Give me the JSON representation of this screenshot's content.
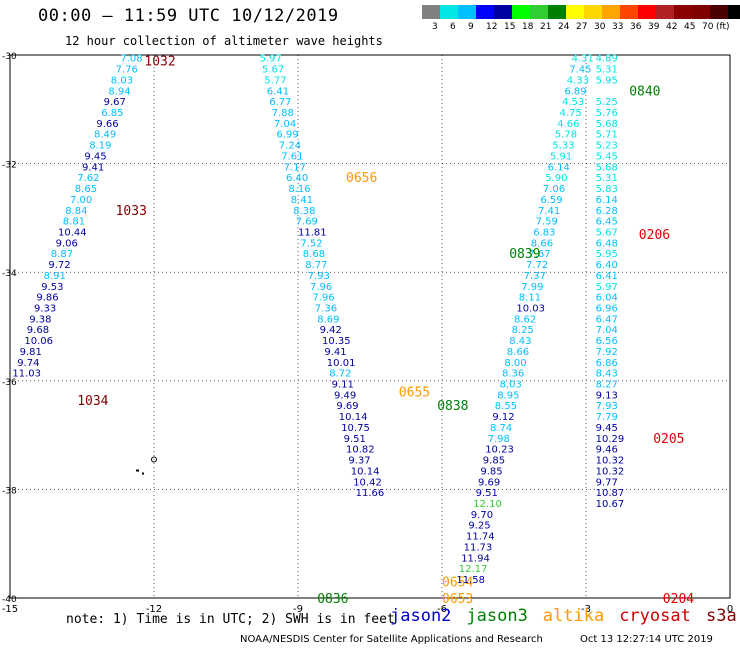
{
  "header": {
    "title": "00:00 – 11:59 UTC 10/12/2019",
    "subtitle": "12 hour collection of altimeter wave heights"
  },
  "colorbar": {
    "colors": [
      "#808080",
      "#00e5e5",
      "#00bfff",
      "#0000ff",
      "#0000a0",
      "#00ff00",
      "#32cd32",
      "#008000",
      "#ffff00",
      "#ffd700",
      "#ffa500",
      "#ff4500",
      "#ff0000",
      "#b22222",
      "#8b0000",
      "#800000",
      "#4b0000",
      "#000000"
    ],
    "labels": [
      "3",
      "6",
      "9",
      "12",
      "15",
      "18",
      "21",
      "24",
      "27",
      "30",
      "33",
      "36",
      "39",
      "42",
      "45",
      "70",
      "(ft)"
    ]
  },
  "footer": {
    "note": "note: 1) Time is in UTC; 2) SWH is in feet",
    "sats": [
      {
        "name": "jason2",
        "color": "#0000cc"
      },
      {
        "name": "jason3",
        "color": "#008000"
      },
      {
        "name": "altika",
        "color": "#ff9900"
      },
      {
        "name": "cryosat",
        "color": "#cc0000"
      },
      {
        "name": "s3a",
        "color": "#800000"
      }
    ],
    "credit": "NOAA/NESDIS Center for Satellite Applications and Research",
    "timestamp": "Oct 13 12:27:14 UTC 2019"
  },
  "chart_data": {
    "type": "scatter",
    "xlim": [
      -15,
      0
    ],
    "ylim": [
      -40,
      -30
    ],
    "xticks": [
      "-15",
      "-12",
      "-9",
      "-6",
      "-3",
      "0"
    ],
    "yticks": [
      "-30",
      "-32",
      "-34",
      "-36",
      "-38",
      "-40"
    ],
    "grid": true,
    "tracks": [
      {
        "satellite": "s3a",
        "time_labels": [
          {
            "text": "1032",
            "lon": -12.2,
            "lat": -30.1
          },
          {
            "text": "1033",
            "lon": -12.8,
            "lat": -32.85
          },
          {
            "text": "1034",
            "lon": -13.6,
            "lat": -36.35
          }
        ],
        "points": [
          [
            "7.08",
            -12.7,
            -30.05
          ],
          [
            "7.76",
            -12.8,
            -30.25
          ],
          [
            "8.03",
            -12.9,
            -30.45
          ],
          [
            "8.94",
            -12.95,
            -30.65
          ],
          [
            "9.67",
            -13.05,
            -30.85
          ],
          [
            "6.85",
            -13.1,
            -31.05
          ],
          [
            "9.66",
            -13.2,
            -31.25
          ],
          [
            "8.49",
            -13.25,
            -31.45
          ],
          [
            "8.19",
            -13.35,
            -31.65
          ],
          [
            "9.45",
            -13.45,
            -31.85
          ],
          [
            "9.41",
            -13.5,
            -32.05
          ],
          [
            "7.62",
            -13.6,
            -32.25
          ],
          [
            "8.65",
            -13.65,
            -32.45
          ],
          [
            "7.00",
            -13.75,
            -32.65
          ],
          [
            "8.84",
            -13.85,
            -32.85
          ],
          [
            "8.81",
            -13.9,
            -33.05
          ],
          [
            "10.44",
            -14.0,
            -33.25
          ],
          [
            "9.06",
            -14.05,
            -33.45
          ],
          [
            "8.87",
            -14.15,
            -33.65
          ],
          [
            "9.72",
            -14.2,
            -33.85
          ],
          [
            "8.91",
            -14.3,
            -34.05
          ],
          [
            "9.53",
            -14.35,
            -34.25
          ],
          [
            "9.86",
            -14.45,
            -34.45
          ],
          [
            "9.33",
            -14.5,
            -34.65
          ],
          [
            "9.38",
            -14.6,
            -34.85
          ],
          [
            "9.68",
            -14.65,
            -35.05
          ],
          [
            "10.06",
            -14.7,
            -35.25
          ],
          [
            "9.81",
            -14.8,
            -35.45
          ],
          [
            "9.74",
            -14.85,
            -35.65
          ],
          [
            "11.03",
            -14.95,
            -35.85
          ]
        ]
      },
      {
        "satellite": "altika",
        "time_labels": [
          {
            "text": "0656",
            "lon": -8.0,
            "lat": -32.25
          },
          {
            "text": "0655",
            "lon": -6.9,
            "lat": -36.2
          },
          {
            "text": "0654",
            "lon": -6.0,
            "lat": -39.7
          },
          {
            "text": "0653",
            "lon": -6.0,
            "lat": -40.0
          }
        ],
        "points": [
          [
            "5.97",
            -9.8,
            -30.05
          ],
          [
            "5.67",
            -9.75,
            -30.25
          ],
          [
            "5.77",
            -9.7,
            -30.45
          ],
          [
            "6.41",
            -9.65,
            -30.65
          ],
          [
            "6.77",
            -9.6,
            -30.85
          ],
          [
            "7.88",
            -9.55,
            -31.05
          ],
          [
            "7.04",
            -9.5,
            -31.25
          ],
          [
            "6.99",
            -9.45,
            -31.45
          ],
          [
            "7.24",
            -9.4,
            -31.65
          ],
          [
            "7.61",
            -9.35,
            -31.85
          ],
          [
            "7.17",
            -9.3,
            -32.05
          ],
          [
            "6.40",
            -9.25,
            -32.25
          ],
          [
            "8.16",
            -9.2,
            -32.45
          ],
          [
            "8.41",
            -9.15,
            -32.65
          ],
          [
            "8.38",
            -9.1,
            -32.85
          ],
          [
            "7.69",
            -9.05,
            -33.05
          ],
          [
            "11.81",
            -9.0,
            -33.25
          ],
          [
            "7.52",
            -8.95,
            -33.45
          ],
          [
            "8.68",
            -8.9,
            -33.65
          ],
          [
            "8.77",
            -8.85,
            -33.85
          ],
          [
            "7.93",
            -8.8,
            -34.05
          ],
          [
            "7.96",
            -8.75,
            -34.25
          ],
          [
            "7.96",
            -8.7,
            -34.45
          ],
          [
            "7.36",
            -8.65,
            -34.65
          ],
          [
            "8.69",
            -8.6,
            -34.85
          ],
          [
            "9.42",
            -8.55,
            -35.05
          ],
          [
            "10.35",
            -8.5,
            -35.25
          ],
          [
            "9.41",
            -8.45,
            -35.45
          ],
          [
            "10.01",
            -8.4,
            -35.65
          ],
          [
            "8.72",
            -8.35,
            -35.85
          ],
          [
            "9.11",
            -8.3,
            -36.05
          ],
          [
            "9.49",
            -8.25,
            -36.25
          ],
          [
            "9.69",
            -8.2,
            -36.45
          ],
          [
            "10.14",
            -8.15,
            -36.65
          ],
          [
            "10.75",
            -8.1,
            -36.85
          ],
          [
            "9.51",
            -8.05,
            -37.05
          ],
          [
            "10.82",
            -8.0,
            -37.25
          ],
          [
            "9.37",
            -7.95,
            -37.45
          ],
          [
            "10.14",
            -7.9,
            -37.65
          ],
          [
            "10.42",
            -7.85,
            -37.85
          ],
          [
            "11.66",
            -7.8,
            -38.05
          ]
        ]
      },
      {
        "satellite": "jason3",
        "time_labels": [
          {
            "text": "0840",
            "lon": -2.1,
            "lat": -30.65
          },
          {
            "text": "0839",
            "lon": -4.6,
            "lat": -33.65
          },
          {
            "text": "0838",
            "lon": -6.1,
            "lat": -36.45
          },
          {
            "text": "0836",
            "lon": -8.6,
            "lat": -40.0
          }
        ],
        "points": [
          [
            "4.31",
            -3.3,
            -30.05
          ],
          [
            "7.45",
            -3.35,
            -30.25
          ],
          [
            "4.33",
            -3.4,
            -30.45
          ],
          [
            "6.89",
            -3.45,
            -30.65
          ],
          [
            "4.53",
            -3.5,
            -30.85
          ],
          [
            "4.75",
            -3.55,
            -31.05
          ],
          [
            "4.66",
            -3.6,
            -31.25
          ],
          [
            "5.78",
            -3.65,
            -31.45
          ],
          [
            "5.33",
            -3.7,
            -31.65
          ],
          [
            "5.91",
            -3.75,
            -31.85
          ],
          [
            "6.14",
            -3.8,
            -32.05
          ],
          [
            "5.90",
            -3.85,
            -32.25
          ],
          [
            "7.06",
            -3.9,
            -32.45
          ],
          [
            "6.59",
            -3.95,
            -32.65
          ],
          [
            "7.41",
            -4.0,
            -32.85
          ],
          [
            "7.59",
            -4.05,
            -33.05
          ],
          [
            "6.83",
            -4.1,
            -33.25
          ],
          [
            "8.66",
            -4.15,
            -33.45
          ],
          [
            "7.67",
            -4.2,
            -33.65
          ],
          [
            "7.72",
            -4.25,
            -33.85
          ],
          [
            "7.37",
            -4.3,
            -34.05
          ],
          [
            "7.99",
            -4.35,
            -34.25
          ],
          [
            "8.11",
            -4.4,
            -34.45
          ],
          [
            "10.03",
            -4.45,
            -34.65
          ],
          [
            "8.62",
            -4.5,
            -34.85
          ],
          [
            "8.25",
            -4.55,
            -35.05
          ],
          [
            "8.43",
            -4.6,
            -35.25
          ],
          [
            "8.66",
            -4.65,
            -35.45
          ],
          [
            "8.00",
            -4.7,
            -35.65
          ],
          [
            "8.36",
            -4.75,
            -35.85
          ],
          [
            "8.03",
            -4.8,
            -36.05
          ],
          [
            "8.95",
            -4.85,
            -36.25
          ],
          [
            "8.55",
            -4.9,
            -36.45
          ],
          [
            "9.12",
            -4.95,
            -36.65
          ],
          [
            "8.74",
            -5.0,
            -36.85
          ],
          [
            "7.98",
            -5.05,
            -37.05
          ],
          [
            "10.23",
            -5.1,
            -37.25
          ],
          [
            "9.85",
            -5.15,
            -37.45
          ],
          [
            "9.85",
            -5.2,
            -37.65
          ],
          [
            "9.69",
            -5.25,
            -37.85
          ],
          [
            "9.51",
            -5.3,
            -38.05
          ],
          [
            "12.10",
            -5.35,
            -38.25
          ],
          [
            "9.70",
            -5.4,
            -38.45
          ],
          [
            "9.25",
            -5.45,
            -38.65
          ],
          [
            "11.74",
            -5.5,
            -38.85
          ],
          [
            "11.73",
            -5.55,
            -39.05
          ],
          [
            "11.94",
            -5.6,
            -39.25
          ],
          [
            "12.17",
            -5.65,
            -39.45
          ],
          [
            "11.58",
            -5.7,
            -39.65
          ]
        ]
      },
      {
        "satellite": "cryosat",
        "time_labels": [
          {
            "text": "0206",
            "lon": -1.9,
            "lat": -33.3
          },
          {
            "text": "0205",
            "lon": -1.6,
            "lat": -37.05
          },
          {
            "text": "0204",
            "lon": -1.4,
            "lat": -40.0
          }
        ],
        "points": [
          [
            "4.89",
            -2.8,
            -30.05
          ],
          [
            "5.31",
            -2.8,
            -30.25
          ],
          [
            "5.95",
            -2.8,
            -30.45
          ],
          [
            "5.25",
            -2.8,
            -30.85
          ],
          [
            "5.76",
            -2.8,
            -31.05
          ],
          [
            "5.68",
            -2.8,
            -31.25
          ],
          [
            "5.71",
            -2.8,
            -31.45
          ],
          [
            "5.23",
            -2.8,
            -31.65
          ],
          [
            "5.45",
            -2.8,
            -31.85
          ],
          [
            "5.68",
            -2.8,
            -32.05
          ],
          [
            "5.31",
            -2.8,
            -32.25
          ],
          [
            "5.83",
            -2.8,
            -32.45
          ],
          [
            "6.14",
            -2.8,
            -32.65
          ],
          [
            "6.28",
            -2.8,
            -32.85
          ],
          [
            "6.45",
            -2.8,
            -33.05
          ],
          [
            "5.67",
            -2.8,
            -33.25
          ],
          [
            "6.48",
            -2.8,
            -33.45
          ],
          [
            "5.95",
            -2.8,
            -33.65
          ],
          [
            "6.40",
            -2.8,
            -33.85
          ],
          [
            "6.41",
            -2.8,
            -34.05
          ],
          [
            "5.97",
            -2.8,
            -34.25
          ],
          [
            "6.04",
            -2.8,
            -34.45
          ],
          [
            "6.96",
            -2.8,
            -34.65
          ],
          [
            "6.47",
            -2.8,
            -34.85
          ],
          [
            "7.04",
            -2.8,
            -35.05
          ],
          [
            "6.56",
            -2.8,
            -35.25
          ],
          [
            "7.92",
            -2.8,
            -35.45
          ],
          [
            "6.86",
            -2.8,
            -35.65
          ],
          [
            "8.43",
            -2.8,
            -35.85
          ],
          [
            "8.27",
            -2.8,
            -36.05
          ],
          [
            "9.13",
            -2.8,
            -36.25
          ],
          [
            "7.93",
            -2.8,
            -36.45
          ],
          [
            "7.79",
            -2.8,
            -36.65
          ],
          [
            "9.45",
            -2.8,
            -36.85
          ],
          [
            "10.29",
            -2.8,
            -37.05
          ],
          [
            "9.46",
            -2.8,
            -37.25
          ],
          [
            "10.32",
            -2.8,
            -37.45
          ],
          [
            "10.32",
            -2.8,
            -37.65
          ],
          [
            "9.77",
            -2.8,
            -37.85
          ],
          [
            "10.87",
            -2.8,
            -38.05
          ],
          [
            "10.67",
            -2.8,
            -38.25
          ]
        ]
      }
    ],
    "coast_markers": [
      {
        "lon": -12.0,
        "lat": -37.45
      }
    ]
  }
}
